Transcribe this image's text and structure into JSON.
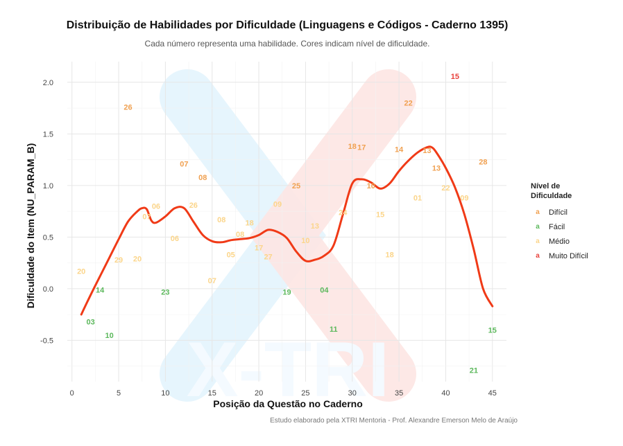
{
  "chart_data": {
    "type": "scatter",
    "title": "Distribuição de Habilidades por Dificuldade (Linguagens e Códigos - Caderno 1395)",
    "subtitle": "Cada número representa uma habilidade. Cores indicam nível de dificuldade.",
    "xlabel": "Posição da Questão no Caderno",
    "ylabel": "Dificuldade do Item (NU_PARAM_B)",
    "caption": "Estudo elaborado pela XTRI Mentoria - Prof. Alexandre Emerson Melo de Araújo",
    "watermark": "X-TRI",
    "xlim": [
      -0.5,
      46.5
    ],
    "ylim": [
      -0.9,
      2.2
    ],
    "x_ticks": [
      0,
      5,
      10,
      15,
      20,
      25,
      30,
      35,
      40,
      45
    ],
    "y_ticks": [
      -0.5,
      0.0,
      0.5,
      1.0,
      1.5,
      2.0
    ],
    "x_tick_labels": [
      "0",
      "5",
      "10",
      "15",
      "20",
      "25",
      "30",
      "35",
      "40",
      "45"
    ],
    "y_tick_labels": [
      "-0.5",
      "0.0",
      "0.5",
      "1.0",
      "1.5",
      "2.0"
    ],
    "grid": true,
    "legend_position": "right",
    "legend": {
      "title": "Nível de Dificuldade",
      "key_glyph": "a",
      "items": [
        {
          "label": "Difícil",
          "color": "#f0a050"
        },
        {
          "label": "Fácil",
          "color": "#5cb85c"
        },
        {
          "label": "Médio",
          "color": "#fbd58a"
        },
        {
          "label": "Muito Difícil",
          "color": "#e8413c"
        }
      ]
    },
    "colors": {
      "Difícil": "#f0a050",
      "Fácil": "#5cb85c",
      "Médio": "#fbd58a",
      "Muito Difícil": "#e8413c",
      "trend": "#f03a17"
    },
    "points": [
      {
        "x": 1,
        "y": 0.17,
        "label": "20",
        "level": "Médio"
      },
      {
        "x": 2,
        "y": -0.32,
        "label": "03",
        "level": "Fácil"
      },
      {
        "x": 3,
        "y": -0.01,
        "label": "14",
        "level": "Fácil"
      },
      {
        "x": 4,
        "y": -0.45,
        "label": "10",
        "level": "Fácil"
      },
      {
        "x": 5,
        "y": 0.28,
        "label": "29",
        "level": "Médio"
      },
      {
        "x": 6,
        "y": 1.76,
        "label": "26",
        "level": "Difícil"
      },
      {
        "x": 7,
        "y": 0.29,
        "label": "20",
        "level": "Médio"
      },
      {
        "x": 8,
        "y": 0.7,
        "label": "07",
        "level": "Médio"
      },
      {
        "x": 9,
        "y": 0.8,
        "label": "06",
        "level": "Médio"
      },
      {
        "x": 10,
        "y": -0.03,
        "label": "23",
        "level": "Fácil"
      },
      {
        "x": 11,
        "y": 0.49,
        "label": "06",
        "level": "Médio"
      },
      {
        "x": 12,
        "y": 1.21,
        "label": "07",
        "level": "Difícil"
      },
      {
        "x": 13,
        "y": 0.81,
        "label": "26",
        "level": "Médio"
      },
      {
        "x": 14,
        "y": 1.08,
        "label": "08",
        "level": "Difícil"
      },
      {
        "x": 15,
        "y": 0.08,
        "label": "07",
        "level": "Médio"
      },
      {
        "x": 16,
        "y": 0.67,
        "label": "08",
        "level": "Médio"
      },
      {
        "x": 17,
        "y": 0.33,
        "label": "05",
        "level": "Médio"
      },
      {
        "x": 18,
        "y": 0.53,
        "label": "08",
        "level": "Médio"
      },
      {
        "x": 19,
        "y": 0.64,
        "label": "18",
        "level": "Médio"
      },
      {
        "x": 20,
        "y": 0.4,
        "label": "17",
        "level": "Médio"
      },
      {
        "x": 21,
        "y": 0.31,
        "label": "27",
        "level": "Médio"
      },
      {
        "x": 22,
        "y": 0.82,
        "label": "09",
        "level": "Médio"
      },
      {
        "x": 23,
        "y": -0.03,
        "label": "19",
        "level": "Fácil"
      },
      {
        "x": 24,
        "y": 1.0,
        "label": "25",
        "level": "Difícil"
      },
      {
        "x": 25,
        "y": 0.47,
        "label": "10",
        "level": "Médio"
      },
      {
        "x": 26,
        "y": 0.61,
        "label": "13",
        "level": "Médio"
      },
      {
        "x": 27,
        "y": -0.01,
        "label": "04",
        "level": "Fácil"
      },
      {
        "x": 28,
        "y": -0.39,
        "label": "11",
        "level": "Fácil"
      },
      {
        "x": 29,
        "y": 0.74,
        "label": "24",
        "level": "Médio"
      },
      {
        "x": 30,
        "y": 1.38,
        "label": "18",
        "level": "Difícil"
      },
      {
        "x": 31,
        "y": 1.37,
        "label": "17",
        "level": "Difícil"
      },
      {
        "x": 32,
        "y": 1.0,
        "label": "10",
        "level": "Difícil"
      },
      {
        "x": 33,
        "y": 0.72,
        "label": "15",
        "level": "Médio"
      },
      {
        "x": 34,
        "y": 0.33,
        "label": "18",
        "level": "Médio"
      },
      {
        "x": 35,
        "y": 1.35,
        "label": "14",
        "level": "Difícil"
      },
      {
        "x": 36,
        "y": 1.8,
        "label": "22",
        "level": "Difícil"
      },
      {
        "x": 37,
        "y": 0.88,
        "label": "01",
        "level": "Médio"
      },
      {
        "x": 38,
        "y": 1.34,
        "label": "13",
        "level": "Difícil"
      },
      {
        "x": 39,
        "y": 1.17,
        "label": "13",
        "level": "Difícil"
      },
      {
        "x": 40,
        "y": 0.98,
        "label": "22",
        "level": "Médio"
      },
      {
        "x": 41,
        "y": 2.06,
        "label": "15",
        "level": "Muito Difícil"
      },
      {
        "x": 42,
        "y": 0.88,
        "label": "09",
        "level": "Médio"
      },
      {
        "x": 43,
        "y": -0.79,
        "label": "21",
        "level": "Fácil"
      },
      {
        "x": 44,
        "y": 1.23,
        "label": "28",
        "level": "Difícil"
      },
      {
        "x": 45,
        "y": -0.4,
        "label": "15",
        "level": "Fácil"
      }
    ],
    "trend_line": {
      "x": [
        1,
        2,
        3,
        4,
        5,
        6,
        7,
        7.5,
        8,
        8.5,
        9,
        10,
        11,
        12,
        13,
        14,
        15,
        16,
        17,
        18,
        19,
        20,
        21,
        22,
        23,
        24,
        25,
        26,
        27,
        28,
        29,
        30,
        31,
        32,
        33,
        34,
        35,
        36,
        37,
        38,
        38.5,
        39,
        40,
        41,
        42,
        43,
        44,
        45
      ],
      "y": [
        -0.25,
        -0.06,
        0.12,
        0.3,
        0.48,
        0.65,
        0.75,
        0.78,
        0.77,
        0.66,
        0.64,
        0.7,
        0.78,
        0.78,
        0.65,
        0.52,
        0.46,
        0.45,
        0.47,
        0.48,
        0.49,
        0.52,
        0.57,
        0.55,
        0.49,
        0.36,
        0.27,
        0.28,
        0.32,
        0.42,
        0.72,
        1.02,
        1.06,
        1.03,
        0.97,
        1.02,
        1.14,
        1.24,
        1.32,
        1.37,
        1.37,
        1.32,
        1.17,
        0.98,
        0.72,
        0.38,
        0.0,
        -0.17
      ]
    }
  }
}
